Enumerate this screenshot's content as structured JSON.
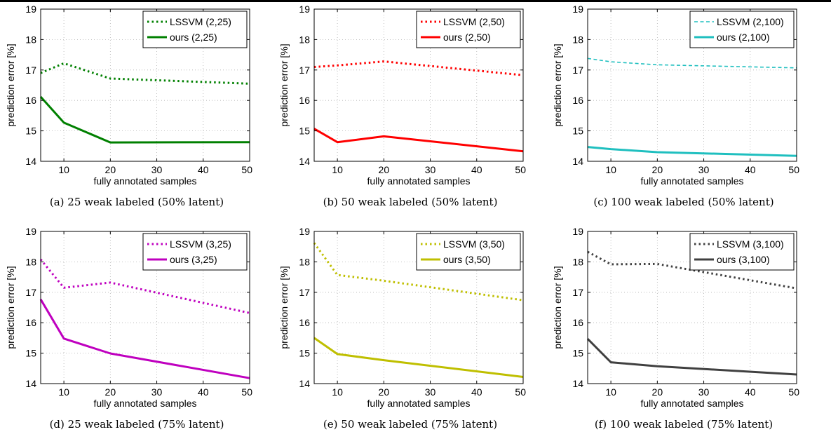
{
  "figure": {
    "xlabel": "fully annotated samples",
    "ylabel": "prediction error [%]",
    "x_ticks": [
      "10",
      "20",
      "30",
      "40",
      "50"
    ],
    "y_ticks": [
      "14",
      "15",
      "16",
      "17",
      "18",
      "19"
    ]
  },
  "chart_data": [
    {
      "type": "line",
      "caption": "(a) 25 weak labeled (50% latent)",
      "xlabel": "fully annotated samples",
      "ylabel": "prediction error [%]",
      "xlim": [
        5,
        50
      ],
      "ylim": [
        14,
        19
      ],
      "grid": true,
      "legend": "top-right",
      "color": "#008000",
      "series": [
        {
          "name": "LSSVM (2,25)",
          "style": "dotted",
          "x": [
            5,
            10,
            20,
            50
          ],
          "y": [
            16.9,
            17.22,
            16.72,
            16.55
          ]
        },
        {
          "name": "ours (2,25)",
          "style": "solid",
          "x": [
            5,
            10,
            20,
            50
          ],
          "y": [
            16.12,
            15.27,
            14.62,
            14.63
          ]
        }
      ]
    },
    {
      "type": "line",
      "caption": "(b) 50 weak labeled (50% latent)",
      "xlabel": "fully annotated samples",
      "ylabel": "prediction error [%]",
      "xlim": [
        5,
        50
      ],
      "ylim": [
        14,
        19
      ],
      "grid": true,
      "legend": "top-right",
      "color": "#ff0000",
      "series": [
        {
          "name": "LSSVM (2,50)",
          "style": "dotted",
          "x": [
            5,
            10,
            20,
            50
          ],
          "y": [
            17.1,
            17.15,
            17.28,
            16.83
          ]
        },
        {
          "name": "ours (2,50)",
          "style": "solid",
          "x": [
            5,
            10,
            20,
            50
          ],
          "y": [
            15.07,
            14.63,
            14.82,
            14.33
          ]
        }
      ]
    },
    {
      "type": "line",
      "caption": "(c) 100 weak labeled (50% latent)",
      "xlabel": "fully annotated samples",
      "ylabel": "prediction error [%]",
      "xlim": [
        5,
        50
      ],
      "ylim": [
        14,
        19
      ],
      "grid": true,
      "legend": "top-right",
      "color": "#1fbfbf",
      "series": [
        {
          "name": "LSSVM (2,100)",
          "style": "dashed",
          "x": [
            5,
            10,
            20,
            50
          ],
          "y": [
            17.38,
            17.27,
            17.17,
            17.07
          ]
        },
        {
          "name": "ours (2,100)",
          "style": "solid",
          "x": [
            5,
            10,
            20,
            50
          ],
          "y": [
            14.47,
            14.4,
            14.3,
            14.18
          ]
        }
      ]
    },
    {
      "type": "line",
      "caption": "(d) 25 weak labeled (75% latent)",
      "xlabel": "fully annotated samples",
      "ylabel": "prediction error [%]",
      "xlim": [
        5,
        50
      ],
      "ylim": [
        14,
        19
      ],
      "grid": true,
      "legend": "top-right",
      "color": "#bf00bf",
      "series": [
        {
          "name": "LSSVM (3,25)",
          "style": "dotted",
          "x": [
            5,
            10,
            20,
            50
          ],
          "y": [
            18.08,
            17.15,
            17.32,
            16.32
          ]
        },
        {
          "name": "ours (3,25)",
          "style": "solid",
          "x": [
            5,
            10,
            20,
            50
          ],
          "y": [
            16.77,
            15.48,
            14.99,
            14.18
          ]
        }
      ]
    },
    {
      "type": "line",
      "caption": "(e) 50 weak labeled (75% latent)",
      "xlabel": "fully annotated samples",
      "ylabel": "prediction error [%]",
      "xlim": [
        5,
        50
      ],
      "ylim": [
        14,
        19
      ],
      "grid": true,
      "legend": "top-right",
      "color": "#bfbf00",
      "series": [
        {
          "name": "LSSVM (3,50)",
          "style": "dotted",
          "x": [
            5,
            10,
            20,
            50
          ],
          "y": [
            18.62,
            17.57,
            17.38,
            16.74
          ]
        },
        {
          "name": "ours (3,50)",
          "style": "solid",
          "x": [
            5,
            10,
            20,
            50
          ],
          "y": [
            15.5,
            14.97,
            14.77,
            14.22
          ]
        }
      ]
    },
    {
      "type": "line",
      "caption": "(f) 100 weak labeled (75% latent)",
      "xlabel": "fully annotated samples",
      "ylabel": "prediction error [%]",
      "xlim": [
        5,
        50
      ],
      "ylim": [
        14,
        19
      ],
      "grid": true,
      "legend": "top-right",
      "color": "#404040",
      "series": [
        {
          "name": "LSSVM (3,100)",
          "style": "dotted",
          "x": [
            5,
            10,
            20,
            50
          ],
          "y": [
            18.33,
            17.92,
            17.93,
            17.13
          ]
        },
        {
          "name": "ours (3,100)",
          "style": "solid",
          "x": [
            5,
            10,
            20,
            50
          ],
          "y": [
            15.47,
            14.7,
            14.57,
            14.3
          ]
        }
      ]
    }
  ]
}
